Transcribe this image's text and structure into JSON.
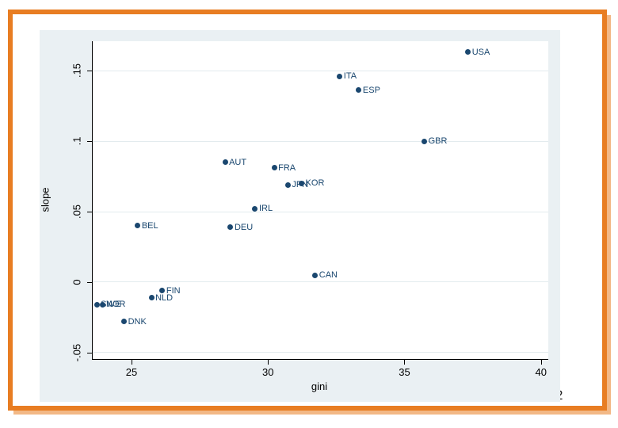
{
  "page": {
    "number": "2"
  },
  "frame": {
    "border_color": "#e87d22"
  },
  "chart": {
    "background": "#eaf0f3",
    "plot_background": "#ffffff",
    "grid_color": "#e3ebee",
    "axis_color": "#000000",
    "marker_color": "#1a476f",
    "point_label_color": "#1a476f"
  },
  "chart_data": {
    "type": "scatter",
    "title": "",
    "xlabel": "gini",
    "ylabel": "slope",
    "xlim": [
      23.55,
      40.24
    ],
    "ylim": [
      -0.0545,
      0.1708
    ],
    "grid": "horizontal-only",
    "legend": "none",
    "x_ticks": [
      {
        "value": 25,
        "label": "25"
      },
      {
        "value": 30,
        "label": "30"
      },
      {
        "value": 35,
        "label": "35"
      },
      {
        "value": 40,
        "label": "40"
      }
    ],
    "y_ticks": [
      {
        "value": -0.05,
        "label": "-.05"
      },
      {
        "value": 0,
        "label": "0"
      },
      {
        "value": 0.05,
        "label": ".05"
      },
      {
        "value": 0.1,
        "label": ".1"
      },
      {
        "value": 0.15,
        "label": ".15"
      }
    ],
    "points": [
      {
        "label": "USA",
        "x": 37.3,
        "y": 0.163
      },
      {
        "label": "ITA",
        "x": 32.6,
        "y": 0.146
      },
      {
        "label": "ESP",
        "x": 33.3,
        "y": 0.136
      },
      {
        "label": "GBR",
        "x": 35.7,
        "y": 0.1
      },
      {
        "label": "AUT",
        "x": 28.4,
        "y": 0.085
      },
      {
        "label": "FRA",
        "x": 30.2,
        "y": 0.081
      },
      {
        "label": "JPN",
        "x": 30.7,
        "y": 0.069
      },
      {
        "label": "KOR",
        "x": 31.2,
        "y": 0.07
      },
      {
        "label": "IRL",
        "x": 29.5,
        "y": 0.052
      },
      {
        "label": "BEL",
        "x": 25.2,
        "y": 0.04
      },
      {
        "label": "DEU",
        "x": 28.6,
        "y": 0.039
      },
      {
        "label": "CAN",
        "x": 31.7,
        "y": 0.005
      },
      {
        "label": "FIN",
        "x": 26.1,
        "y": -0.006
      },
      {
        "label": "NLD",
        "x": 25.7,
        "y": -0.011
      },
      {
        "label": "SWE",
        "x": 23.7,
        "y": -0.016
      },
      {
        "label": "NOR",
        "x": 23.9,
        "y": -0.016
      },
      {
        "label": "DNK",
        "x": 24.7,
        "y": -0.028
      }
    ]
  }
}
